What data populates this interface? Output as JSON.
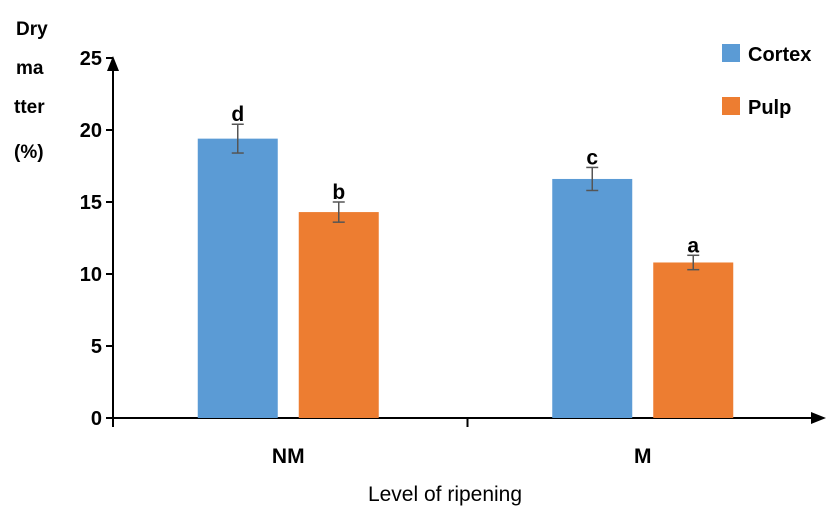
{
  "chart_data": {
    "type": "bar",
    "categories": [
      "NM",
      "M"
    ],
    "series": [
      {
        "name": "Cortex",
        "color": "#5b9bd5",
        "values": [
          19.4,
          16.6
        ],
        "errors": [
          1.0,
          0.8
        ],
        "letters": [
          "d",
          "c"
        ]
      },
      {
        "name": "Pulp",
        "color": "#ed7d31",
        "values": [
          14.3,
          10.8
        ],
        "errors": [
          0.7,
          0.5
        ],
        "letters": [
          "b",
          "a"
        ]
      }
    ],
    "ylabel_lines": [
      "Dry",
      "ma",
      "tter",
      "(%)"
    ],
    "xlabel": "Level of ripening",
    "yticks": [
      0,
      5,
      10,
      15,
      20,
      25
    ],
    "ylim": [
      0,
      25
    ],
    "grid": false,
    "legend_position": "top-right"
  }
}
